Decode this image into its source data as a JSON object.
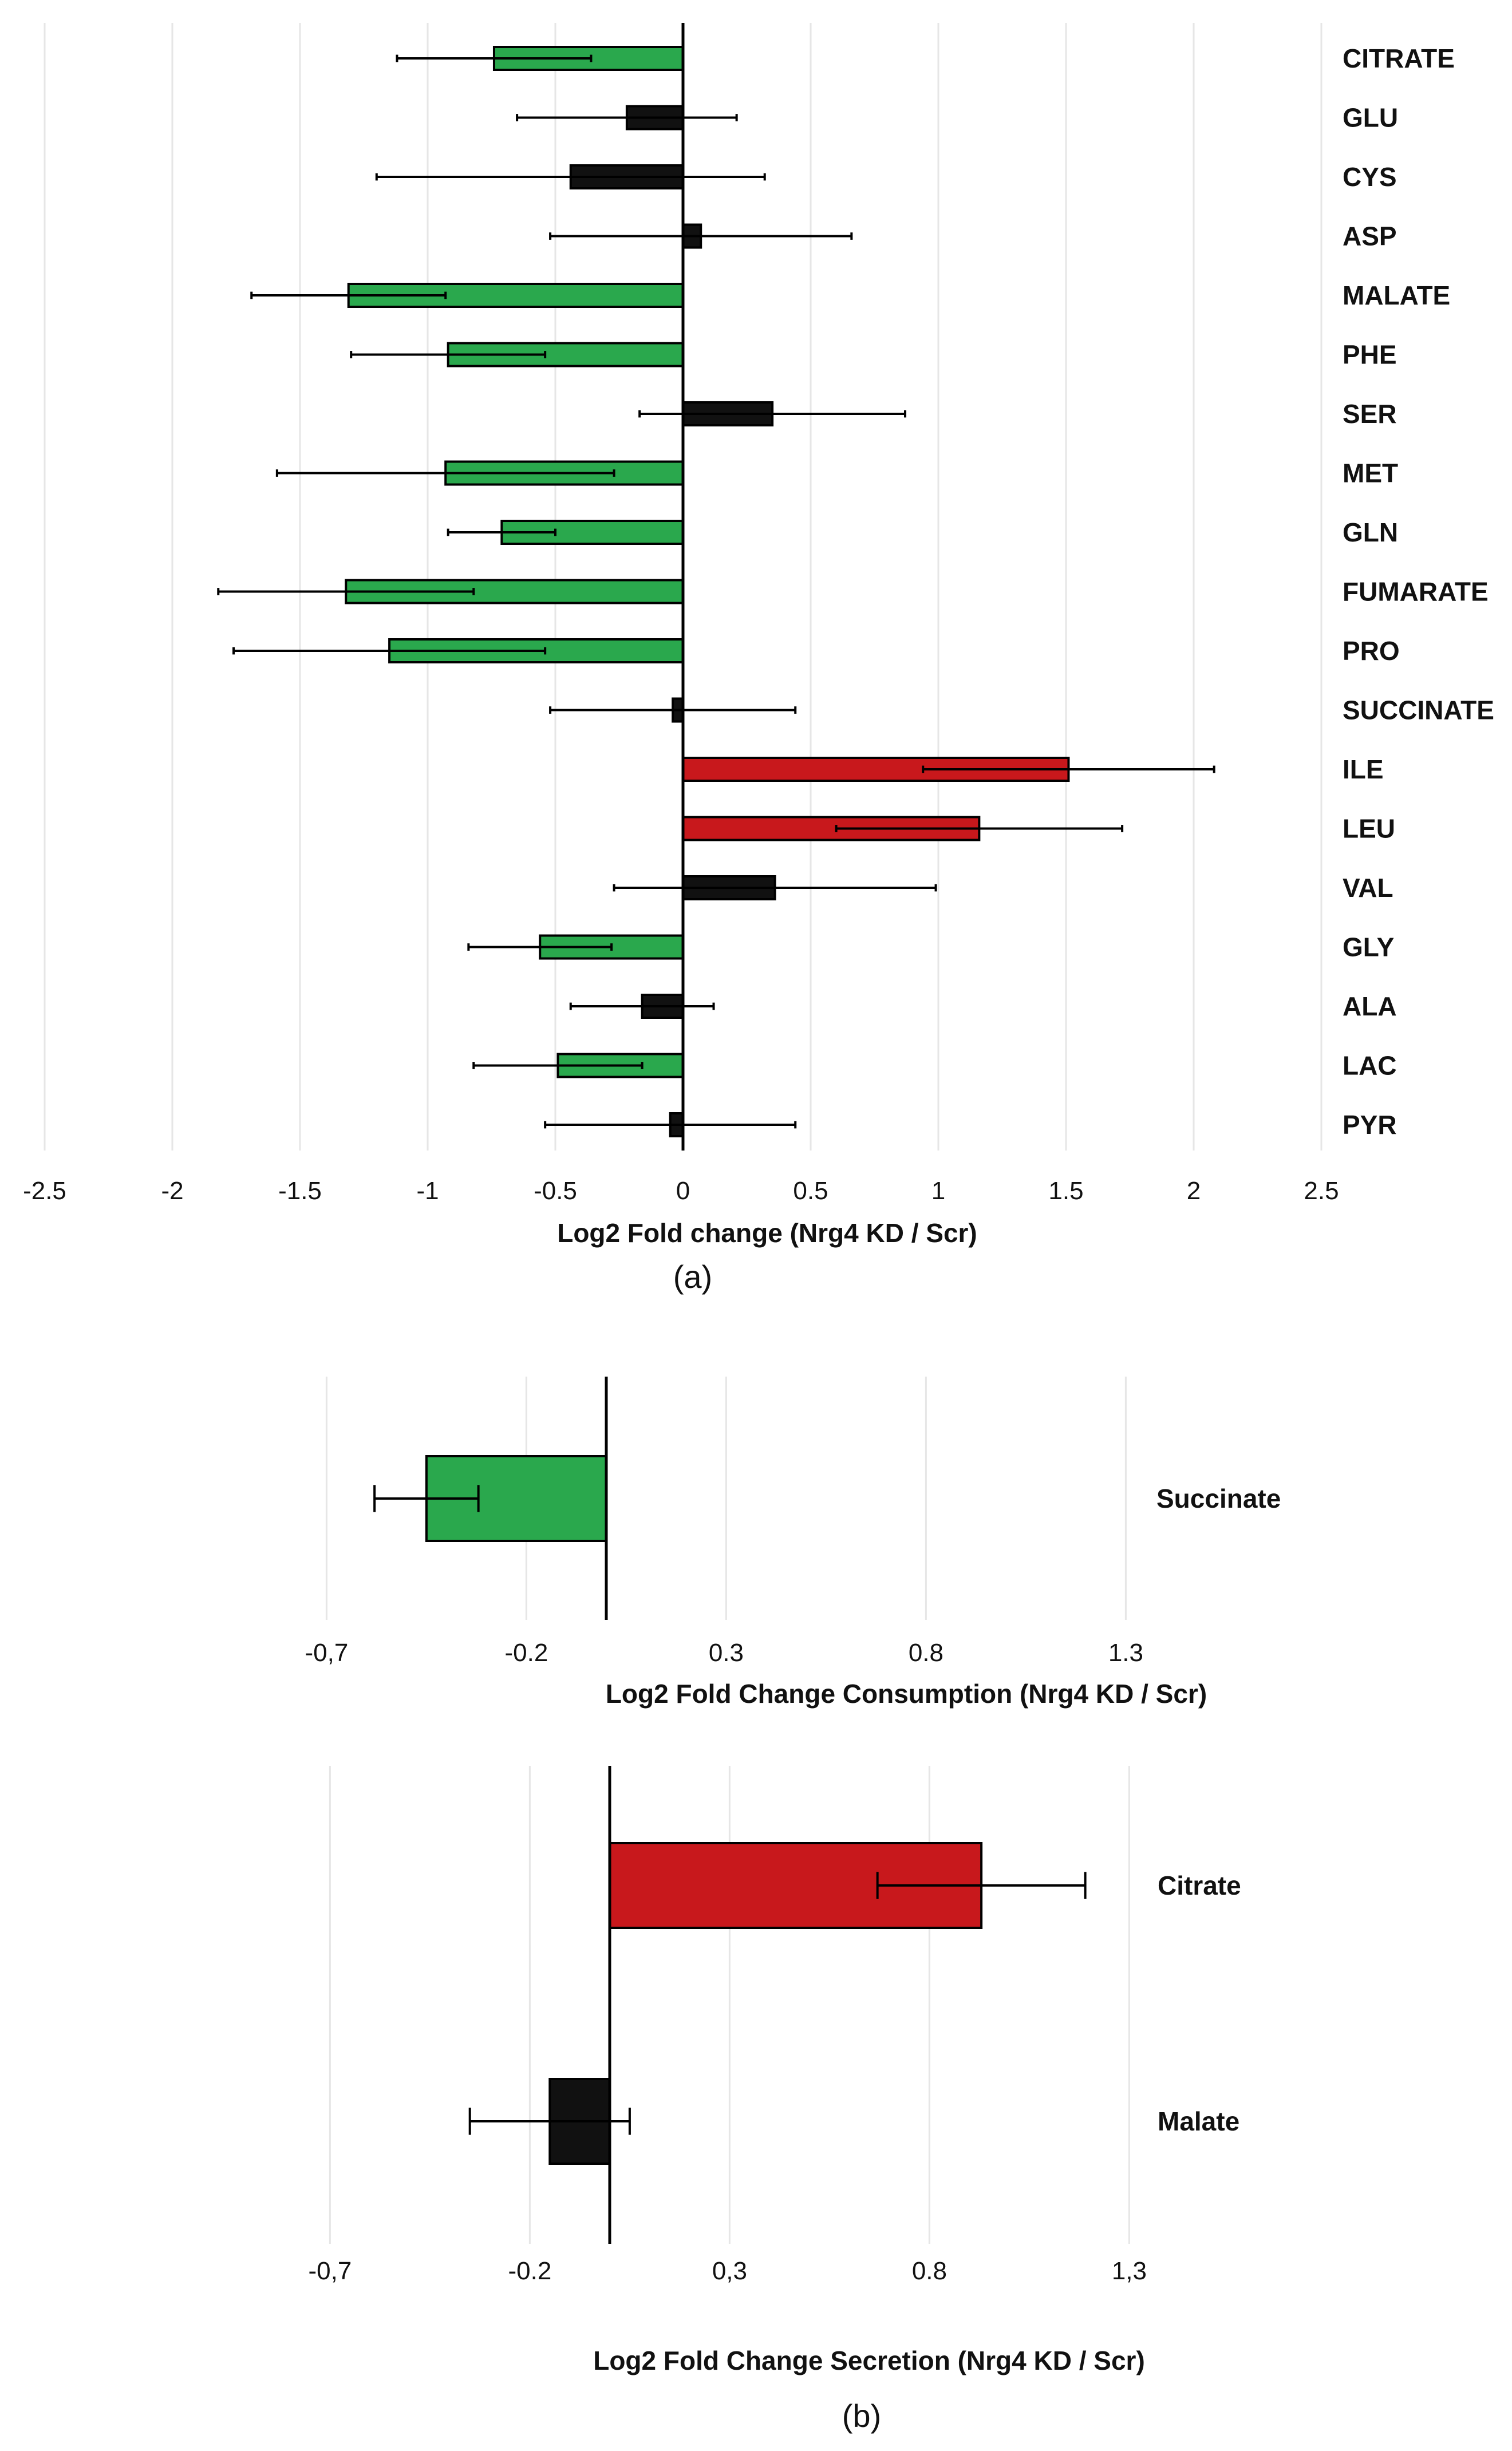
{
  "colors": {
    "decrease": "#2aa84d",
    "increase": "#c8181c",
    "not_significant": "#111111",
    "grid": "#e6e6e6",
    "axis": "#000000"
  },
  "panel_labels": {
    "a": "(a)",
    "b": "(b)"
  },
  "chart_data": [
    {
      "id": "a",
      "type": "bar",
      "orientation": "horizontal",
      "xlabel": "Log2 Fold change (Nrg4 KD / Scr)",
      "xlim": [
        -2.5,
        2.5
      ],
      "xticks": [
        -2.5,
        -2,
        -1.5,
        -1,
        -0.5,
        0,
        0.5,
        1,
        1.5,
        2,
        2.5
      ],
      "tick_labels": [
        "-2.5",
        "-2",
        "-1.5",
        "-1",
        "-0.5",
        "0",
        "0.5",
        "1",
        "1.5",
        "2",
        "2.5"
      ],
      "grid": true,
      "categories": [
        "CITRATE",
        "GLU",
        "CYS",
        "ASP",
        "MALATE",
        "PHE",
        "SER",
        "MET",
        "GLN",
        "FUMARATE",
        "PRO",
        "SUCCINATE",
        "ILE",
        "LEU",
        "VAL",
        "GLY",
        "ALA",
        "LAC",
        "PYR"
      ],
      "values": [
        -0.74,
        -0.22,
        -0.44,
        0.07,
        -1.31,
        -0.92,
        0.35,
        -0.93,
        -0.71,
        -1.32,
        -1.15,
        -0.04,
        1.51,
        1.16,
        0.36,
        -0.56,
        -0.16,
        -0.49,
        -0.05
      ],
      "error": [
        0.38,
        0.43,
        0.76,
        0.59,
        0.38,
        0.38,
        0.52,
        0.66,
        0.21,
        0.5,
        0.61,
        0.48,
        0.57,
        0.56,
        0.63,
        0.28,
        0.28,
        0.33,
        0.49
      ],
      "status": [
        "down",
        "ns",
        "ns",
        "ns",
        "down",
        "down",
        "ns",
        "down",
        "down",
        "down",
        "down",
        "ns",
        "up",
        "up",
        "ns",
        "down",
        "ns",
        "down",
        "ns"
      ]
    },
    {
      "id": "b1",
      "type": "bar",
      "orientation": "horizontal",
      "xlabel": "Log2 Fold Change Consumption (Nrg4 KD / Scr)",
      "xlim": [
        -0.7,
        1.3
      ],
      "xticks": [
        -0.7,
        -0.2,
        0.3,
        0.8,
        1.3
      ],
      "tick_labels": [
        "-0,7",
        "-0.2",
        "0.3",
        "0.8",
        "1.3"
      ],
      "grid": true,
      "categories": [
        "Succinate"
      ],
      "values": [
        -0.45
      ],
      "error": [
        0.13
      ],
      "status": [
        "down"
      ]
    },
    {
      "id": "b2",
      "type": "bar",
      "orientation": "horizontal",
      "xlabel": "Log2 Fold Change Secretion (Nrg4 KD / Scr)",
      "xlim": [
        -0.7,
        1.3
      ],
      "xticks": [
        -0.7,
        -0.2,
        0.3,
        0.8,
        1.3
      ],
      "tick_labels": [
        "-0,7",
        "-0.2",
        "0,3",
        "0.8",
        "1,3"
      ],
      "grid": true,
      "categories": [
        "Citrate",
        "Malate"
      ],
      "values": [
        0.93,
        -0.15
      ],
      "error": [
        0.26,
        0.2
      ],
      "status": [
        "up",
        "ns"
      ]
    }
  ]
}
